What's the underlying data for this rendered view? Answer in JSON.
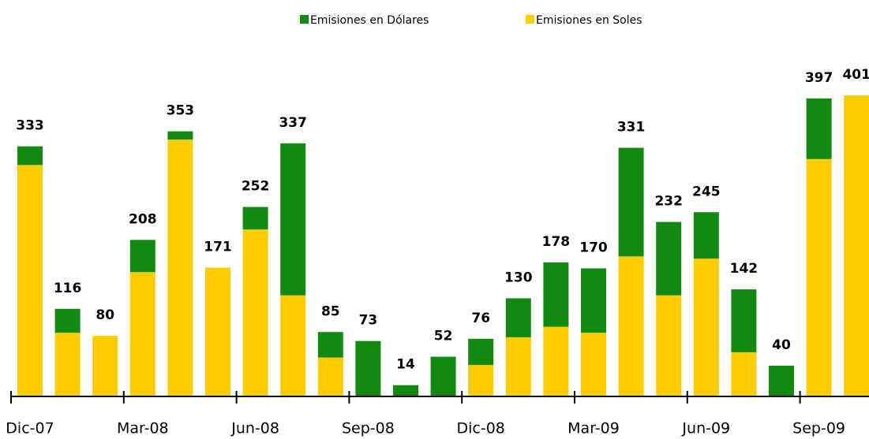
{
  "chart_data": {
    "type": "stacked_bar",
    "categories": [
      "Dic-07",
      null,
      null,
      "Mar-08",
      null,
      null,
      "Jun-08",
      null,
      null,
      "Sep-08",
      null,
      null,
      "Dic-08",
      null,
      null,
      "Mar-09",
      null,
      null,
      "Jun-09",
      null,
      null,
      "Sep-09",
      null
    ],
    "series": [
      {
        "name": "Emisiones en Soles",
        "color": "#ffcc00",
        "values": [
          308,
          84,
          80,
          165,
          342,
          171,
          222,
          134,
          51,
          0,
          0,
          0,
          41,
          78,
          92,
          84,
          186,
          134,
          183,
          58,
          0,
          316,
          401
        ]
      },
      {
        "name": "Emisiones en Dólares",
        "color": "#128a12",
        "values": [
          25,
          32,
          0,
          43,
          11,
          0,
          30,
          203,
          34,
          73,
          14,
          52,
          35,
          52,
          86,
          86,
          145,
          98,
          62,
          84,
          40,
          81,
          0
        ]
      }
    ],
    "totals": [
      333,
      116,
      80,
      208,
      353,
      171,
      252,
      337,
      85,
      73,
      14,
      52,
      76,
      130,
      178,
      170,
      331,
      232,
      245,
      142,
      40,
      397,
      401
    ]
  }
}
